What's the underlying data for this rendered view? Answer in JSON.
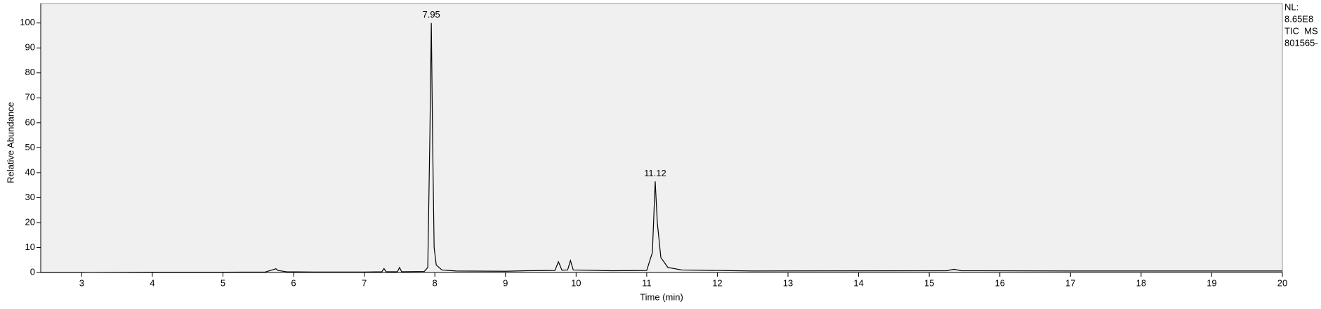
{
  "chart_data": {
    "type": "line",
    "x_label": "Time (min)",
    "y_label": "Relative Abundance",
    "xlim": [
      2.42,
      20
    ],
    "ylim": [
      0,
      107.8
    ],
    "xticks": [
      3,
      4,
      5,
      6,
      7,
      8,
      9,
      10,
      11,
      12,
      13,
      14,
      15,
      16,
      17,
      18,
      19,
      20
    ],
    "yticks": [
      0,
      10,
      20,
      30,
      40,
      50,
      60,
      70,
      80,
      90,
      100
    ],
    "x": [
      2.42,
      3.0,
      4.0,
      5.0,
      5.6,
      5.72,
      5.75,
      5.78,
      5.9,
      6.3,
      7.0,
      7.25,
      7.28,
      7.31,
      7.47,
      7.5,
      7.53,
      7.85,
      7.9,
      7.93,
      7.95,
      7.97,
      7.99,
      8.02,
      8.1,
      8.3,
      9.0,
      9.3,
      9.7,
      9.75,
      9.8,
      9.88,
      9.92,
      9.96,
      10.5,
      11.0,
      11.08,
      11.12,
      11.15,
      11.2,
      11.3,
      11.5,
      12.5,
      15.25,
      15.35,
      15.45,
      17,
      20
    ],
    "series": [
      {
        "color": "#000000",
        "values": [
          0,
          0,
          0.1,
          0.1,
          0.2,
          1.2,
          1.5,
          0.8,
          0.3,
          0.2,
          0.2,
          0.3,
          1.6,
          0.3,
          0.3,
          2.0,
          0.3,
          0.4,
          2,
          55,
          100,
          50,
          10,
          3,
          1,
          0.6,
          0.5,
          0.7,
          0.8,
          4.3,
          0.9,
          1,
          4.8,
          1,
          0.7,
          0.8,
          8,
          36.5,
          20,
          6,
          2,
          1,
          0.6,
          0.7,
          1.3,
          0.7,
          0.6,
          0.6
        ]
      }
    ],
    "peak_labels": [
      {
        "x": 7.95,
        "y": 100,
        "label": "7.95"
      },
      {
        "x": 11.12,
        "y": 36.5,
        "label": "11.12"
      }
    ],
    "side_text": [
      "NL:",
      "8.65E8",
      "TIC  MS",
      "801565-"
    ],
    "background": "#f0f0f0"
  }
}
